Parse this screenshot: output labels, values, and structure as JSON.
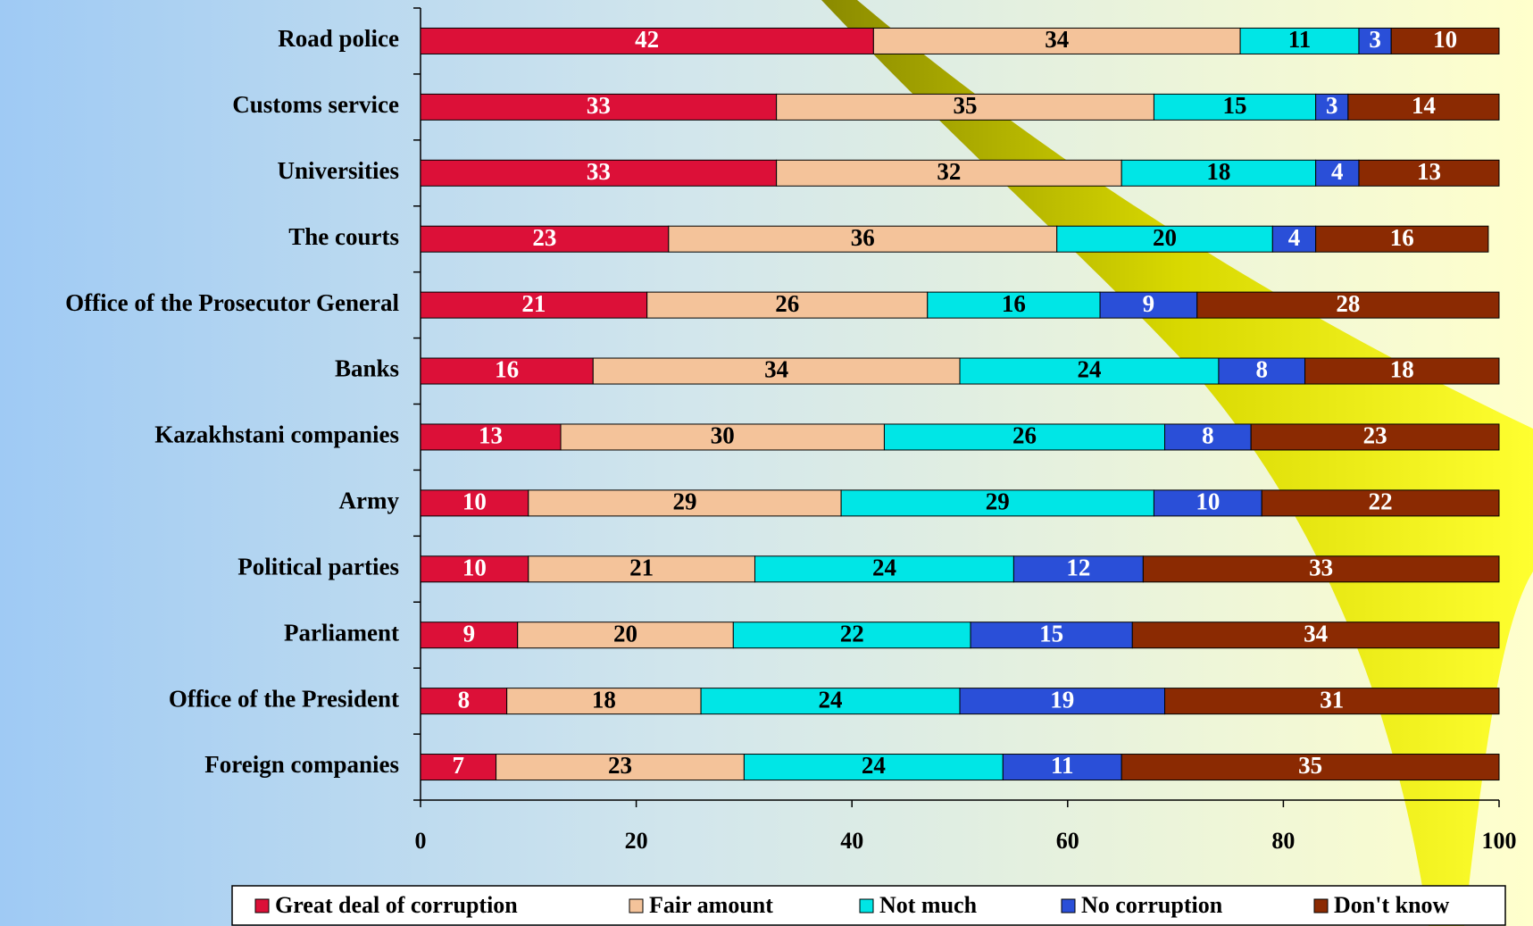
{
  "chart_data": {
    "type": "bar",
    "orientation": "horizontal",
    "stacked": true,
    "categories": [
      "Road police",
      "Customs service",
      "Universities",
      "The courts",
      "Office of the Prosecutor General",
      "Banks",
      "Kazakhstani companies",
      "Army",
      "Political parties",
      "Parliament",
      "Office of the President",
      "Foreign companies"
    ],
    "series": [
      {
        "name": "Great deal of corruption",
        "color": "#dc1038",
        "label_color": "#ffffff",
        "values": [
          42,
          33,
          33,
          23,
          21,
          16,
          13,
          10,
          10,
          9,
          8,
          7
        ]
      },
      {
        "name": "Fair amount",
        "color": "#f4c39a",
        "label_color": "#000000",
        "values": [
          34,
          35,
          32,
          36,
          26,
          34,
          30,
          29,
          21,
          20,
          18,
          23
        ]
      },
      {
        "name": "Not much",
        "color": "#00e6e6",
        "label_color": "#000000",
        "values": [
          11,
          15,
          18,
          20,
          16,
          24,
          26,
          29,
          24,
          22,
          24,
          24
        ]
      },
      {
        "name": "No corruption",
        "color": "#2a4fd8",
        "label_color": "#ffffff",
        "values": [
          3,
          3,
          4,
          4,
          9,
          8,
          8,
          10,
          12,
          15,
          19,
          11
        ]
      },
      {
        "name": "Don't know",
        "color": "#8b2a02",
        "label_color": "#ffffff",
        "values": [
          10,
          14,
          13,
          16,
          28,
          18,
          23,
          22,
          33,
          34,
          31,
          35
        ]
      }
    ],
    "xlim": [
      0,
      100
    ],
    "xticks": [
      0,
      20,
      40,
      60,
      80,
      100
    ],
    "legend": "bottom"
  }
}
